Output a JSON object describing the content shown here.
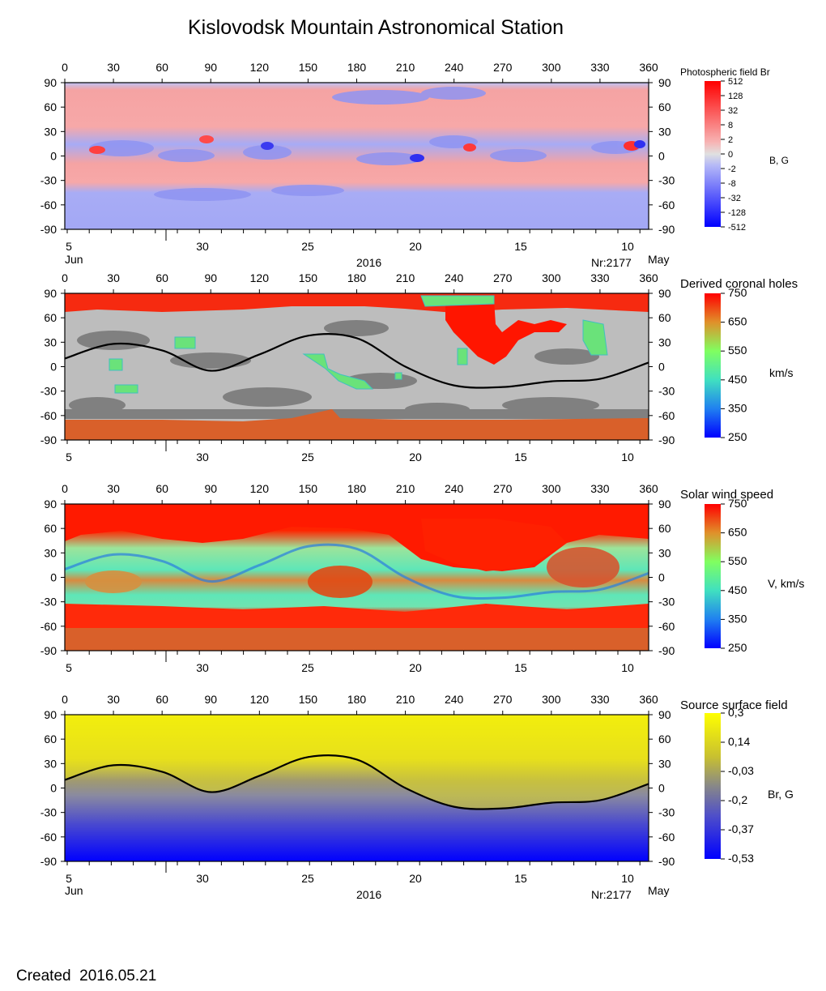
{
  "page": {
    "title": "Kislovodsk Mountain Astronomical Station",
    "created_label": "Created",
    "created_date": "2016.05.21"
  },
  "colors": {
    "positive_field": "#f5a3a3",
    "negative_field": "#a3a8f5",
    "coronal_hole_gray_light": "#c0c0c0",
    "coronal_hole_gray_dark": "#808080",
    "fast_wind": "#ff2000",
    "polar_wind": "#d9602a",
    "slow_wind": "#55e6b4",
    "source_positive": "#ffff00",
    "source_negative": "#0000ff",
    "neutral_line": "#000000"
  },
  "chart_data": [
    {
      "type": "heatmap",
      "name": "photospheric",
      "title": "Photospheric field Br",
      "unit_label": "B, G",
      "x_top": {
        "range": [
          0,
          360
        ],
        "ticks": [
          "0",
          "30",
          "60",
          "90",
          "120",
          "150",
          "180",
          "210",
          "240",
          "270",
          "300",
          "330",
          "360"
        ]
      },
      "y": {
        "range": [
          -90,
          90
        ],
        "ticks": [
          "90",
          "60",
          "30",
          "0",
          "-30",
          "-60",
          "-90"
        ]
      },
      "x_bottom": {
        "ticks": [
          "5",
          "30",
          "25",
          "20",
          "15",
          "10"
        ],
        "month_left": "Jun",
        "month_right": "May",
        "year": "2016",
        "rotation": "Nr:2177"
      },
      "colorbar": {
        "scale": "symlog",
        "ticks": [
          "512",
          "128",
          "32",
          "8",
          "2",
          "0",
          "-2",
          "-8",
          "-32",
          "-128",
          "-512"
        ]
      }
    },
    {
      "type": "heatmap",
      "name": "coronal-holes",
      "title": "Derived coronal holes",
      "unit_label": "km/s",
      "x_top": {
        "range": [
          0,
          360
        ],
        "ticks": [
          "0",
          "30",
          "60",
          "90",
          "120",
          "150",
          "180",
          "210",
          "240",
          "270",
          "300",
          "330",
          "360"
        ]
      },
      "y": {
        "range": [
          -90,
          90
        ],
        "ticks": [
          "90",
          "60",
          "30",
          "0",
          "-30",
          "-60",
          "-90"
        ]
      },
      "x_bottom": {
        "ticks": [
          "5",
          "30",
          "25",
          "20",
          "15",
          "10"
        ]
      },
      "colorbar": {
        "range": [
          250,
          750
        ],
        "ticks": [
          "750",
          "650",
          "550",
          "450",
          "350",
          "250"
        ]
      },
      "neutral_line": {
        "lon": [
          0,
          30,
          60,
          90,
          120,
          150,
          180,
          210,
          240,
          270,
          300,
          330,
          360
        ],
        "lat": [
          10,
          28,
          20,
          -5,
          15,
          38,
          35,
          0,
          -23,
          -25,
          -18,
          -15,
          5
        ]
      }
    },
    {
      "type": "heatmap",
      "name": "solar-wind",
      "title": "Solar wind speed",
      "unit_label": "V, km/s",
      "x_top": {
        "range": [
          0,
          360
        ],
        "ticks": [
          "0",
          "30",
          "60",
          "90",
          "120",
          "150",
          "180",
          "210",
          "240",
          "270",
          "300",
          "330",
          "360"
        ]
      },
      "y": {
        "range": [
          -90,
          90
        ],
        "ticks": [
          "90",
          "60",
          "30",
          "0",
          "-30",
          "-60",
          "-90"
        ]
      },
      "x_bottom": {
        "ticks": [
          "5",
          "30",
          "25",
          "20",
          "15",
          "10"
        ]
      },
      "colorbar": {
        "range": [
          250,
          750
        ],
        "ticks": [
          "750",
          "650",
          "550",
          "450",
          "350",
          "250"
        ]
      }
    },
    {
      "type": "heatmap",
      "name": "source-surface",
      "title": "Source surface field",
      "unit_label": "Br, G",
      "x_top": {
        "range": [
          0,
          360
        ],
        "ticks": [
          "0",
          "30",
          "60",
          "90",
          "120",
          "150",
          "180",
          "210",
          "240",
          "270",
          "300",
          "330",
          "360"
        ]
      },
      "y": {
        "range": [
          -90,
          90
        ],
        "ticks": [
          "90",
          "60",
          "30",
          "0",
          "-30",
          "-60",
          "-90"
        ]
      },
      "x_bottom": {
        "ticks": [
          "5",
          "30",
          "25",
          "20",
          "15",
          "10"
        ],
        "month_left": "Jun",
        "month_right": "May",
        "year": "2016",
        "rotation": "Nr:2177"
      },
      "colorbar": {
        "range": [
          -0.53,
          0.3
        ],
        "ticks": [
          "0,3",
          "0,14",
          "-0,03",
          "-0,2",
          "-0,37",
          "-0,53"
        ]
      },
      "neutral_line": {
        "lon": [
          0,
          30,
          60,
          90,
          120,
          150,
          180,
          210,
          240,
          270,
          300,
          330,
          360
        ],
        "lat": [
          10,
          28,
          20,
          -5,
          15,
          38,
          35,
          0,
          -23,
          -25,
          -18,
          -15,
          5
        ]
      }
    }
  ]
}
